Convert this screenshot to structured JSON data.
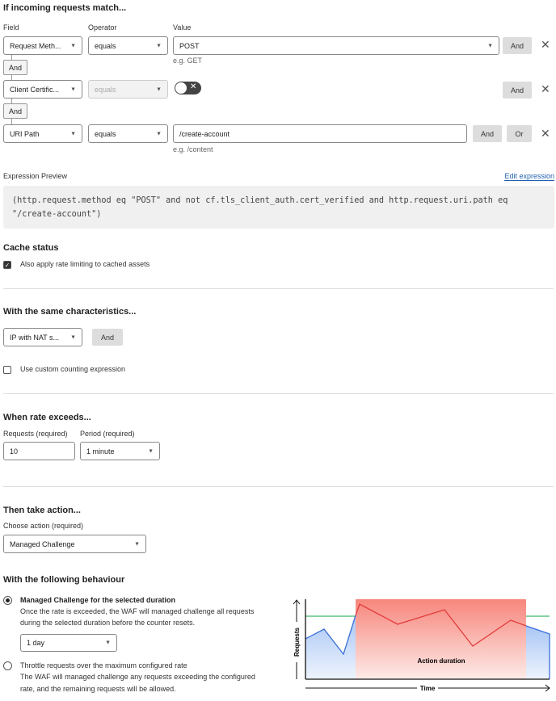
{
  "match": {
    "title": "If incoming requests match...",
    "field_label": "Field",
    "operator_label": "Operator",
    "value_label": "Value",
    "rows": [
      {
        "field": "Request Meth...",
        "operator": "equals",
        "value": "POST",
        "hint": "e.g. GET",
        "and": "And"
      },
      {
        "field": "Client Certific...",
        "operator": "equals",
        "toggle": "off",
        "and": "And"
      },
      {
        "field": "URI Path",
        "operator": "equals",
        "value": "/create-account",
        "hint": "e.g. /content",
        "and": "And",
        "or": "Or"
      }
    ],
    "connector": "And"
  },
  "expression": {
    "label": "Expression Preview",
    "edit": "Edit expression",
    "line1": "(http.request.method eq \"POST\" and not cf.tls_client_auth.cert_verified and http.request.uri.path eq",
    "line2": "\"/create-account\")"
  },
  "cache": {
    "title": "Cache status",
    "checkbox": "Also apply rate limiting to cached assets",
    "checked": true
  },
  "characteristics": {
    "title": "With the same characteristics...",
    "select": "IP with NAT s...",
    "and": "And",
    "custom": "Use custom counting expression",
    "custom_checked": false
  },
  "rate": {
    "title": "When rate exceeds...",
    "requests_label": "Requests (required)",
    "requests": "10",
    "period_label": "Period (required)",
    "period": "1 minute"
  },
  "action": {
    "title": "Then take action...",
    "choose_label": "Choose action (required)",
    "choose": "Managed Challenge"
  },
  "behaviour": {
    "title": "With the following behaviour",
    "opt1": {
      "title": "Managed Challenge for the selected duration",
      "line1": "Once the rate is exceeded, the WAF will managed challenge all requests",
      "line2": "during the selected duration before the counter resets.",
      "duration": "1 day",
      "selected": true
    },
    "opt2": {
      "title": "Throttle requests over the maximum configured rate",
      "line1": "The WAF will managed challenge any exceeding the configured",
      "line1_full": "The WAF will managed challenge any requests exceeding the configured",
      "line2": "rate, and the remaining requests will be allowed.",
      "selected": false
    }
  },
  "illustration": {
    "y_label": "Requests",
    "x_label": "Time",
    "band_label": "Action duration",
    "colors": {
      "normal": "#3b6fd8",
      "action": "#e23b3b",
      "threshold": "#3cb96a"
    }
  }
}
